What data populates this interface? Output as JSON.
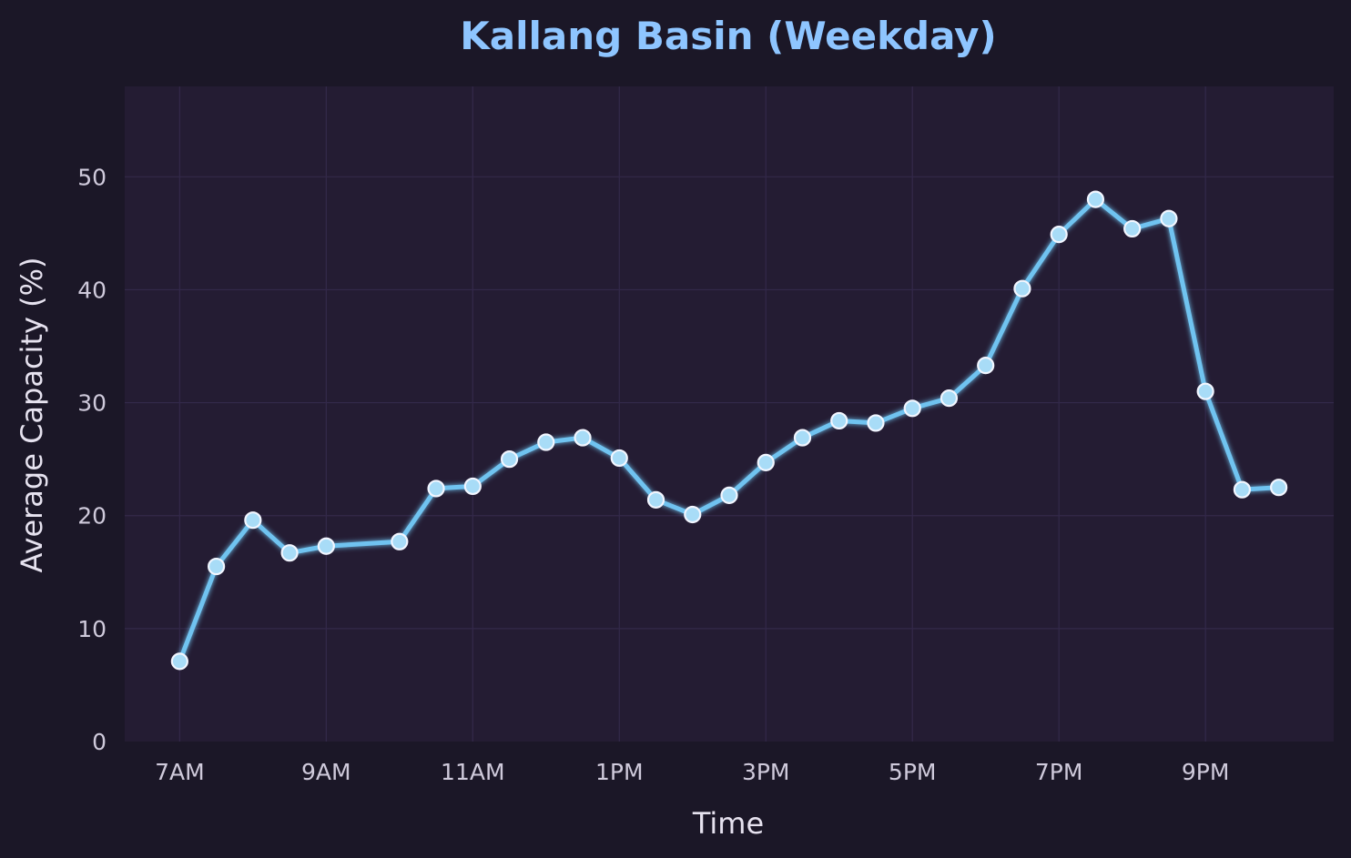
{
  "chart_data": {
    "type": "line",
    "title": "Kallang Basin (Weekday)",
    "xlabel": "Time",
    "ylabel": "Average Capacity (%)",
    "x_tick_labels": [
      "7AM",
      "9AM",
      "11AM",
      "1PM",
      "3PM",
      "5PM",
      "7PM",
      "9PM"
    ],
    "x_tick_hours": [
      7,
      9,
      11,
      13,
      15,
      17,
      19,
      21
    ],
    "xlim_hours": [
      6.25,
      22.75
    ],
    "ylim": [
      0,
      58
    ],
    "y_ticks": [
      0,
      10,
      20,
      30,
      40,
      50
    ],
    "grid": true,
    "series": [
      {
        "color": "#6fc3f0",
        "x_hours": [
          7,
          7.5,
          8,
          8.5,
          9,
          10,
          10.5,
          11,
          11.5,
          12,
          12.5,
          13,
          13.5,
          14,
          14.5,
          15,
          15.5,
          16,
          16.5,
          17,
          17.5,
          18,
          18.5,
          19,
          19.5,
          20,
          20.5,
          21,
          21.5,
          22
        ],
        "x": [
          "7:00AM",
          "7:30AM",
          "8:00AM",
          "8:30AM",
          "9:00AM",
          "10:00AM",
          "10:30AM",
          "11:00AM",
          "11:30AM",
          "12:00PM",
          "12:30PM",
          "1:00PM",
          "1:30PM",
          "2:00PM",
          "2:30PM",
          "3:00PM",
          "3:30PM",
          "4:00PM",
          "4:30PM",
          "5:00PM",
          "5:30PM",
          "6:00PM",
          "6:30PM",
          "7:00PM",
          "7:30PM",
          "8:00PM",
          "8:30PM",
          "9:00PM",
          "9:30PM",
          "10:00PM"
        ],
        "values": [
          7.1,
          15.5,
          19.6,
          16.7,
          17.3,
          17.7,
          22.4,
          22.6,
          25.0,
          26.5,
          26.9,
          25.1,
          21.4,
          20.1,
          21.8,
          24.7,
          26.9,
          28.4,
          28.2,
          29.5,
          30.4,
          33.3,
          40.1,
          44.9,
          48.0,
          45.4,
          46.3,
          31.0,
          22.3,
          22.5
        ]
      }
    ]
  },
  "style": {
    "title_color": "#8ec5ff",
    "background": "#1b1727",
    "plot_background": "#241c33",
    "grid_color": "#33294a",
    "line_color": "#6fc3f0",
    "marker_fill": "#a8dcf7",
    "marker_edge": "#f2f6ff"
  }
}
